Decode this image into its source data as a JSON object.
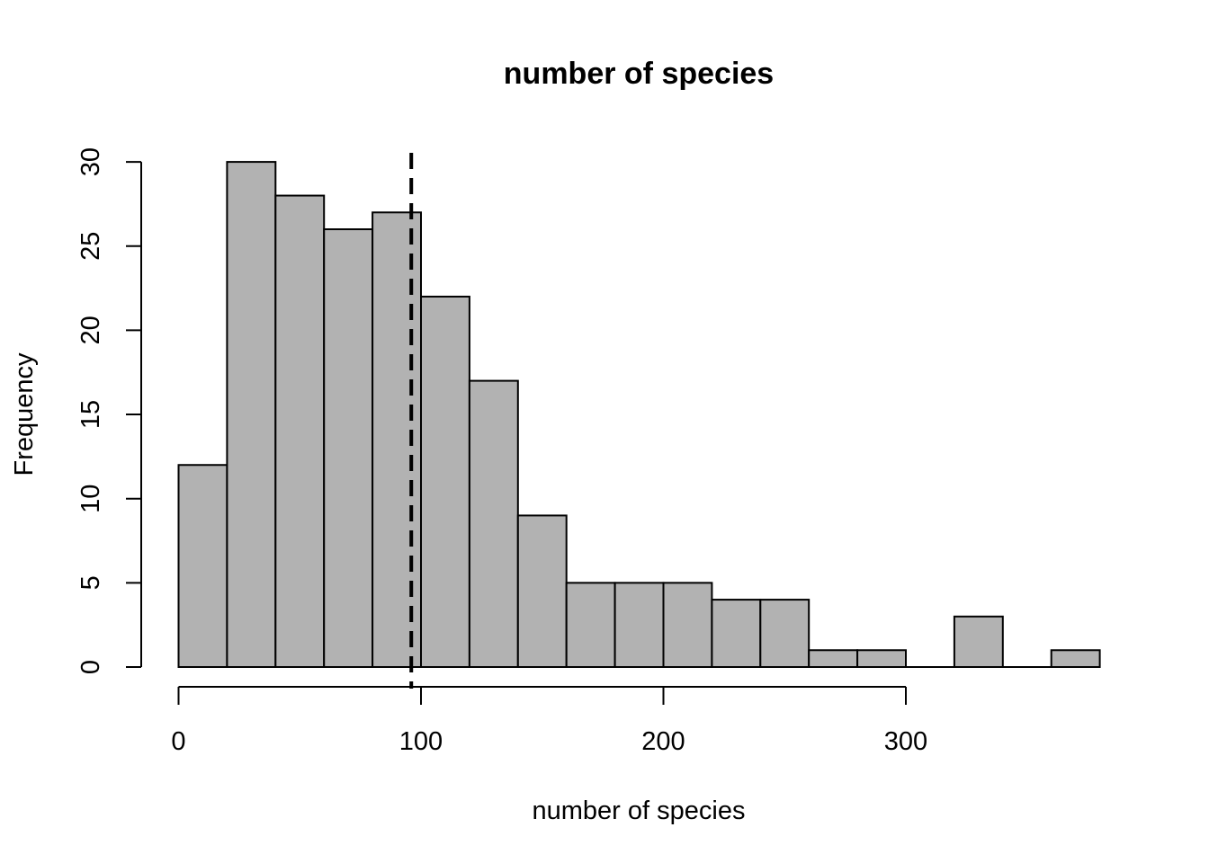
{
  "chart_data": {
    "type": "bar",
    "title": "number of species",
    "xlabel": "number of species",
    "ylabel": "Frequency",
    "bin_edges": [
      0,
      20,
      40,
      60,
      80,
      100,
      120,
      140,
      160,
      180,
      200,
      220,
      240,
      260,
      280,
      300,
      320,
      340,
      360,
      380
    ],
    "values": [
      12,
      30,
      28,
      26,
      27,
      22,
      17,
      9,
      5,
      5,
      5,
      4,
      4,
      1,
      1,
      0,
      3,
      0,
      1
    ],
    "xlim": [
      0,
      380
    ],
    "ylim": [
      0,
      30
    ],
    "x_ticks": [
      0,
      100,
      200,
      300
    ],
    "y_ticks": [
      0,
      5,
      10,
      15,
      20,
      25,
      30
    ],
    "reference_line": {
      "x": 96,
      "style": "dashed"
    },
    "bar_color": "#b2b2b2",
    "grid": false
  }
}
